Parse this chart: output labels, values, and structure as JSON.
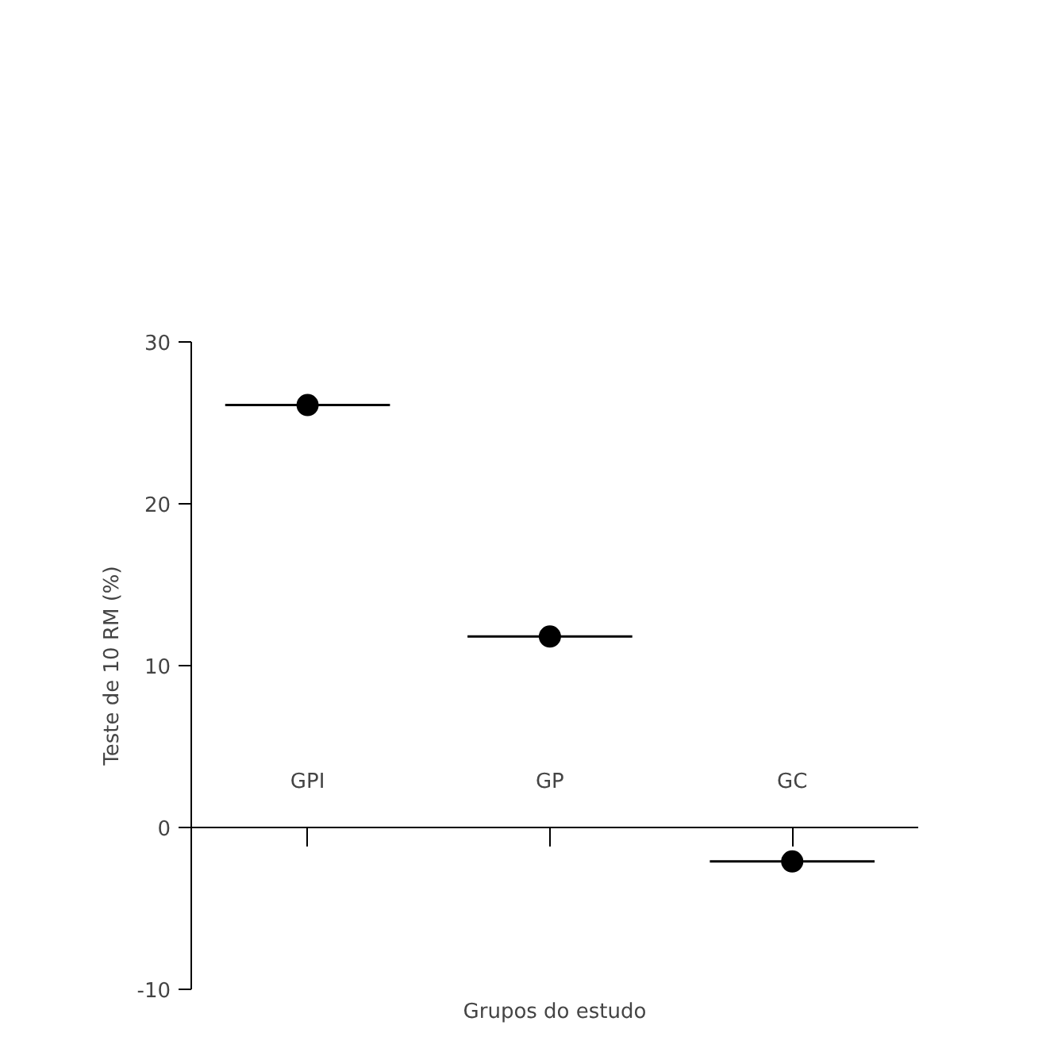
{
  "chart_data": {
    "type": "box",
    "ylabel": "Teste de 10 RM (%)",
    "xlabel": "Grupos do estudo",
    "categories": [
      "GPI",
      "GP",
      "GC"
    ],
    "boxes": [
      {
        "low": 26.1,
        "q1": 26.1,
        "median": 26.1,
        "q3": 26.1,
        "high": 26.1,
        "mean": 26.1
      },
      {
        "low": 11.8,
        "q1": 11.8,
        "median": 11.8,
        "q3": 11.8,
        "high": 11.8,
        "mean": 11.8
      },
      {
        "low": -2.1,
        "q1": -2.1,
        "median": -2.1,
        "q3": -2.1,
        "high": -2.1,
        "mean": -2.1
      }
    ],
    "color": "#000000",
    "ylim": [
      -10,
      30
    ],
    "yticks": [
      {
        "value": -10,
        "label": "-10"
      },
      0,
      10,
      20,
      30
    ],
    "grid": false
  }
}
